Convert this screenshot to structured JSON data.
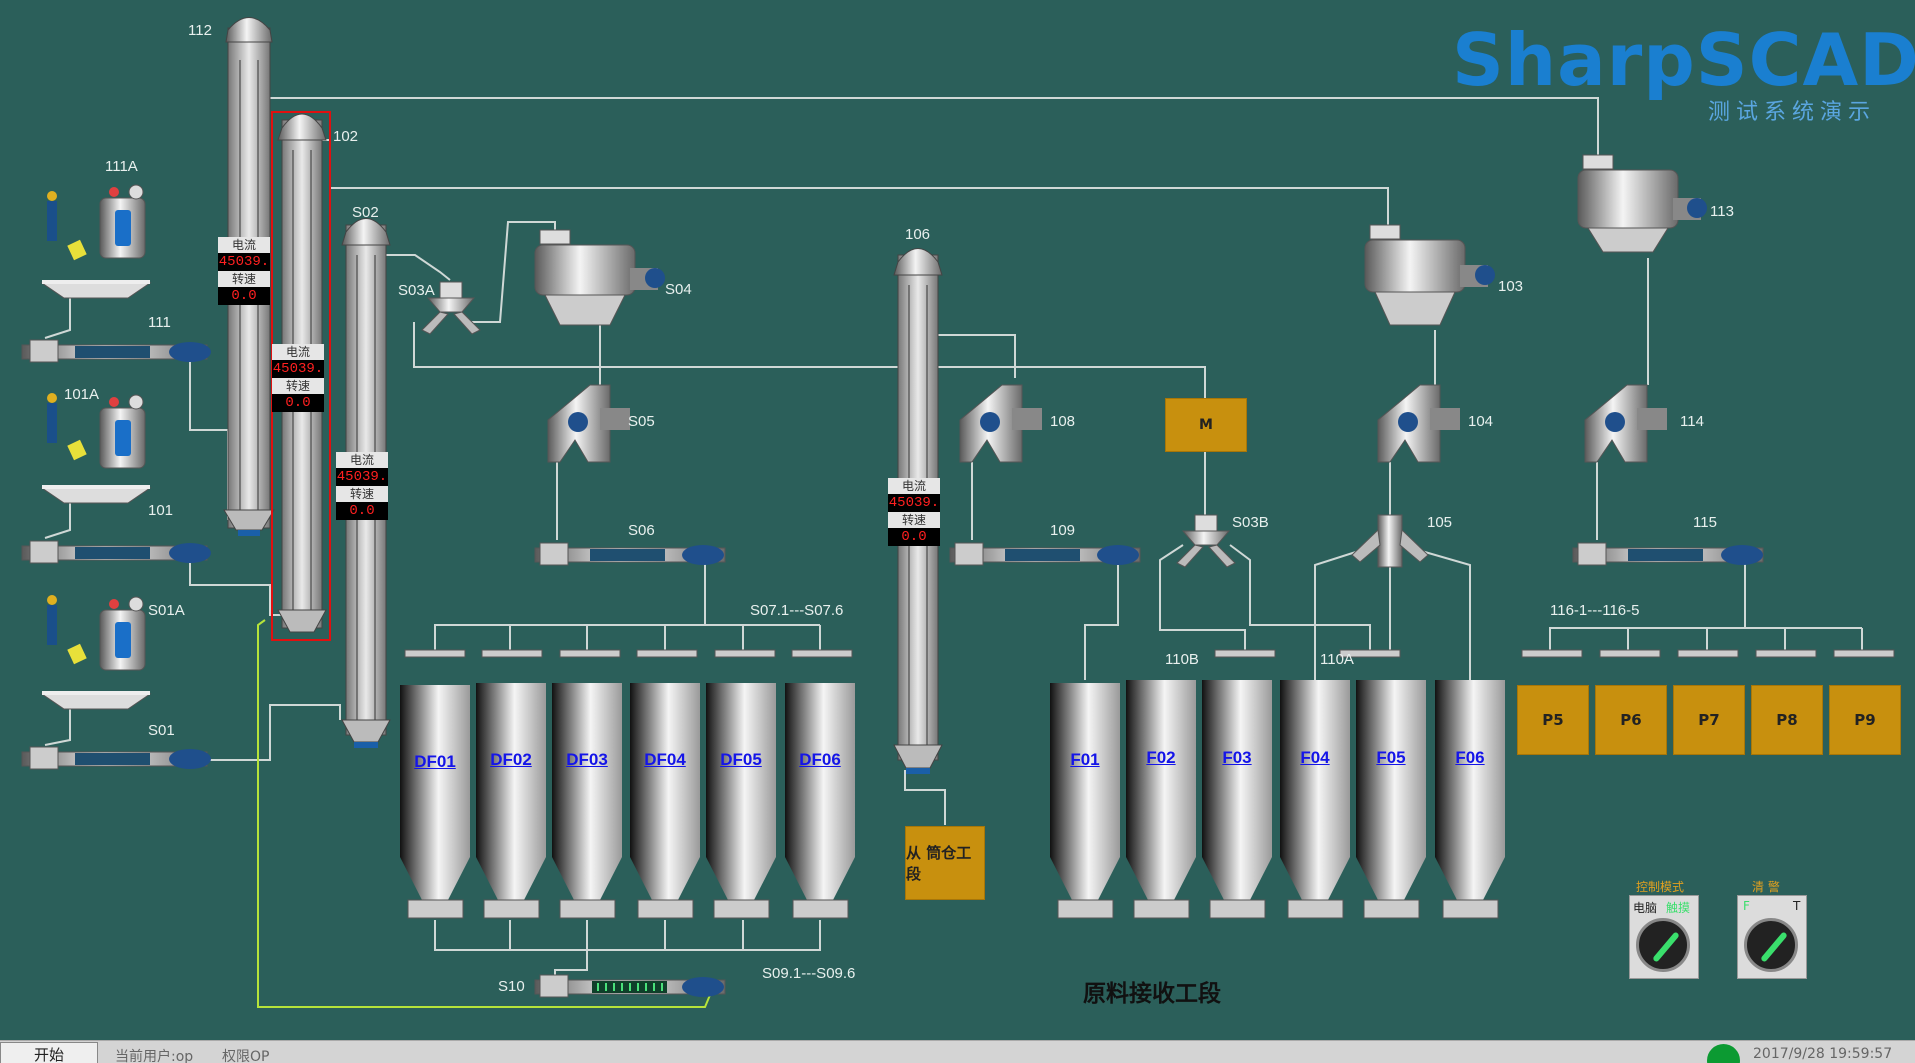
{
  "logo": {
    "title": "SharpSCADA",
    "subtitle": "测试系统演示"
  },
  "section_title": "原料接收工段",
  "meter_labels": {
    "current": "电流",
    "speed": "转速"
  },
  "elevators": [
    {
      "id": "112",
      "current": "45039.",
      "speed": "0.0"
    },
    {
      "id": "102",
      "current": "45039.",
      "speed": "0.0",
      "selected": true
    },
    {
      "id": "S02",
      "current": "45039.",
      "speed": "0.0"
    },
    {
      "id": "106",
      "current": "45039.",
      "speed": "0.0"
    }
  ],
  "intake_stations": [
    {
      "hopper": "111A",
      "conveyor": "111"
    },
    {
      "hopper": "101A",
      "conveyor": "101"
    },
    {
      "hopper": "S01A",
      "conveyor": "S01"
    }
  ],
  "equipment_labels": {
    "s03a": "S03A",
    "s04": "S04",
    "s05": "S05",
    "s06": "S06",
    "s07": "S07.1---S07.6",
    "s09": "S09.1---S09.6",
    "s10": "S10",
    "e108": "108",
    "e109": "109",
    "s03b": "S03B",
    "e110b": "110B",
    "e103": "103",
    "e104": "104",
    "e105": "105",
    "e110a": "110A",
    "e113": "113",
    "e114": "114",
    "e115": "115",
    "e116": "116-1---116-5"
  },
  "motor_box": "M",
  "from_silo_box": "从 筒仓工段",
  "bins_df": [
    "DF01",
    "DF02",
    "DF03",
    "DF04",
    "DF05",
    "DF06"
  ],
  "bins_f": [
    "F01",
    "F02",
    "F03",
    "F04",
    "F05",
    "F06"
  ],
  "bins_p": [
    "P5",
    "P6",
    "P7",
    "P8",
    "P9"
  ],
  "controls": [
    {
      "title": "控制模式",
      "left_label": "电脑",
      "right_label": "触摸"
    },
    {
      "title": "清 警",
      "left_label": "F",
      "right_label": "T"
    }
  ],
  "taskbar": {
    "start": "开始",
    "user": "当前用户:op",
    "permission": "权限OP",
    "datetime": "2017/9/28 19:59:57"
  },
  "colors": {
    "background": "#2b5f5a",
    "accent": "#1a7fd0",
    "alarm": "#ff2020",
    "box": "#c8900e"
  }
}
